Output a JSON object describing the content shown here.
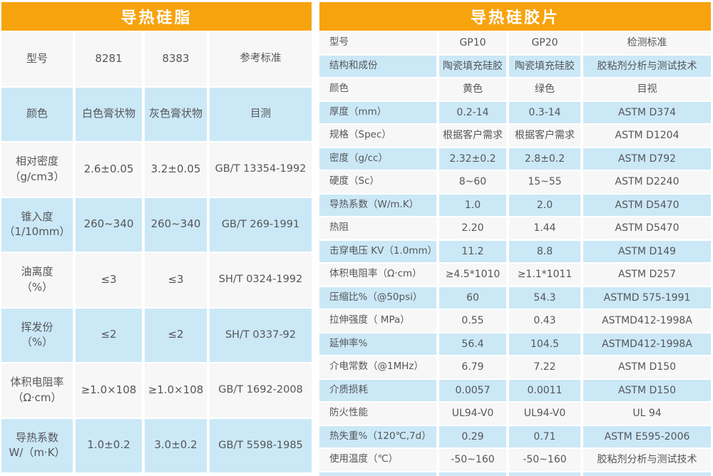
{
  "colors": {
    "header_orange": "#F7A30E",
    "row_blue": "#CBE8F7",
    "row_white": "#F7F7F7",
    "title_text": "#FFFFFF",
    "body_text": "#55565A"
  },
  "left_table": {
    "title": "导热硅脂",
    "rows": [
      [
        "型号",
        "8281",
        "8383",
        "参考标准"
      ],
      [
        "颜色",
        "白色膏状物",
        "灰色膏状物",
        "目测"
      ],
      [
        "相对密度\n（g/cm3）",
        "2.6±0.05",
        "3.2±0.05",
        "GB/T 13354-1992"
      ],
      [
        "锥入度\n（1/10mm）",
        "260~340",
        "260~340",
        "GB/T 269-1991"
      ],
      [
        "油离度\n（%）",
        "≤3",
        "≤3",
        "SH/T 0324-1992"
      ],
      [
        "挥发份\n（%）",
        "≤2",
        "≤2",
        "SH/T 0337-92"
      ],
      [
        "体积电阻率\n（Ω·cm）",
        "≥1.0×108",
        "≥1.0×108",
        "GB/T 1692-2008"
      ],
      [
        "导热系数\nW/（m·K）",
        "1.0±0.2",
        "3.0±0.2",
        "GB/T 5598-1985"
      ]
    ]
  },
  "right_table": {
    "title": "导热硅胶片",
    "rows": [
      [
        "型号",
        "GP10",
        "GP20",
        "检测标准"
      ],
      [
        "结构和成份",
        "陶瓷填充硅胶",
        "陶瓷填充硅胶",
        "胶粘剂分析与测试技术"
      ],
      [
        "颜色",
        "黄色",
        "绿色",
        "目视"
      ],
      [
        "厚度（mm）",
        "0.2-14",
        "0.3-14",
        "ASTM D374"
      ],
      [
        "规格（Spec）",
        "根据客户需求",
        "根据客户需求",
        "ASTM D1204"
      ],
      [
        "密度（g/cc）",
        "2.32±0.2",
        "2.8±0.2",
        "ASTM D792"
      ],
      [
        "硬度（Sc）",
        "8~60",
        "15~55",
        "ASTM D2240"
      ],
      [
        "导热系数（W/m.K）",
        "1.0",
        "2.0",
        "ASTM D5470"
      ],
      [
        "热阻",
        "2.20",
        "1.44",
        "ASTM D5470"
      ],
      [
        "击穿电压 KV（1.0mm）",
        "11.2",
        "8.8",
        "ASTM D149"
      ],
      [
        "体积电阻率（Ω·cm）",
        "≥4.5*1010",
        "≥1.1*1011",
        "ASTM D257"
      ],
      [
        "压缩比%（@50psi）",
        "60",
        "54.3",
        "ASTMD 575-1991"
      ],
      [
        "拉伸强度（ MPa）",
        "0.55",
        "0.43",
        "ASTMD412-1998A"
      ],
      [
        "延伸率%",
        "56.4",
        "104.5",
        "ASTMD412-1998A"
      ],
      [
        "介电常数（@1MHz）",
        "6.79",
        "7.22",
        "ASTM D150"
      ],
      [
        "介质损耗",
        "0.0057",
        "0.0011",
        "ASTM D150"
      ],
      [
        "防火性能",
        "UL94-V0",
        "UL94-V0",
        "UL 94"
      ],
      [
        "热失重%（120℃,7d）",
        "0.29",
        "0.71",
        "ASTM E595-2006"
      ],
      [
        "使用温度（℃）",
        "-50~160",
        "-50~160",
        "胶粘剂分析与测试技术"
      ]
    ]
  }
}
